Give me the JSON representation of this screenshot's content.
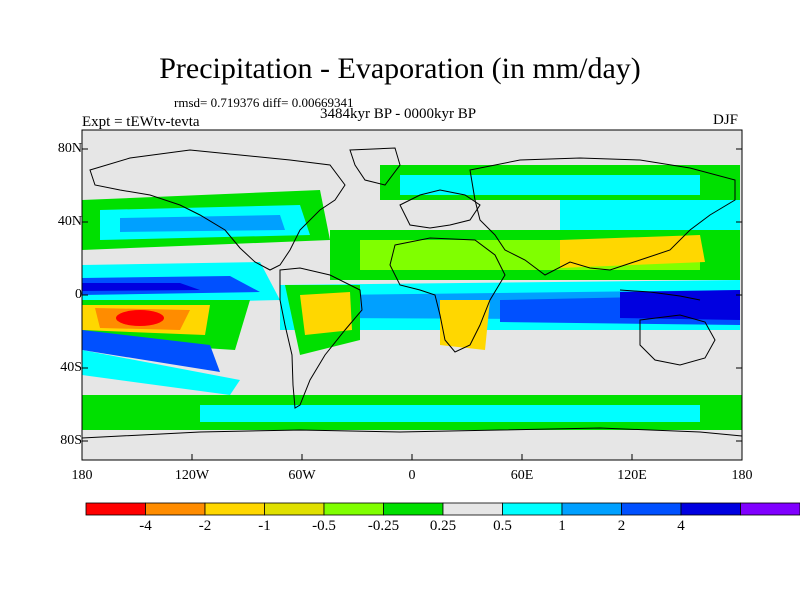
{
  "header": {
    "title": "Precipitation - Evaporation (in mm/day)",
    "stats": "rmsd= 0.719376 diff= 0.00669341",
    "period": "3484kyr BP - 0000kyr BP",
    "experiment": "Expt = tEWtv-tevta",
    "season": "DJF"
  },
  "axes": {
    "y_ticks": [
      "80N",
      "40N",
      "0",
      "40S",
      "80S"
    ],
    "x_ticks": [
      "180",
      "120W",
      "60W",
      "0",
      "60E",
      "120E",
      "180"
    ]
  },
  "colorbar": {
    "labels": [
      "-4",
      "-2",
      "-1",
      "-0.5",
      "-0.25",
      "0.25",
      "0.5",
      "1",
      "2",
      "4"
    ],
    "colors": [
      "#ff0000",
      "#ff8c00",
      "#ffd700",
      "#e0e000",
      "#80ff00",
      "#00e000",
      "#e6e6e6",
      "#00ffff",
      "#00a0ff",
      "#0050ff",
      "#0000e0",
      "#8000ff"
    ]
  },
  "map": {
    "background_color": "#e6e6e6",
    "coastline_color": "#000000"
  }
}
